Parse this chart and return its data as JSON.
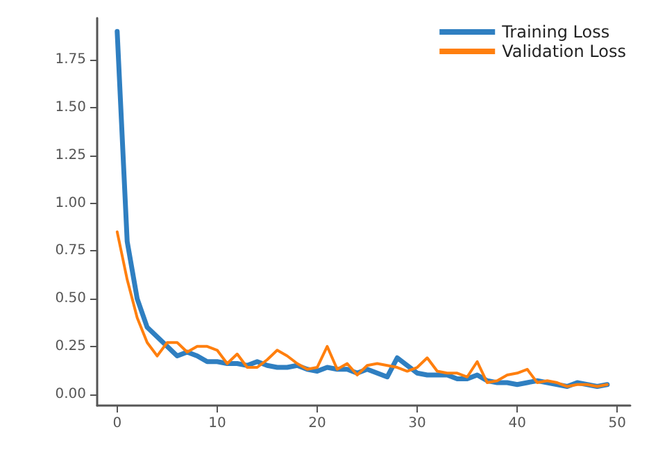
{
  "chart_data": {
    "type": "line",
    "x": [
      0,
      1,
      2,
      3,
      4,
      5,
      6,
      7,
      8,
      9,
      10,
      11,
      12,
      13,
      14,
      15,
      16,
      17,
      18,
      19,
      20,
      21,
      22,
      23,
      24,
      25,
      26,
      27,
      28,
      29,
      30,
      31,
      32,
      33,
      34,
      35,
      36,
      37,
      38,
      39,
      40,
      41,
      42,
      43,
      44,
      45,
      46,
      47,
      48,
      49
    ],
    "series": [
      {
        "name": "Training Loss",
        "color": "#2f7fc1",
        "values": [
          1.9,
          0.8,
          0.5,
          0.35,
          0.3,
          0.25,
          0.2,
          0.22,
          0.2,
          0.17,
          0.17,
          0.16,
          0.16,
          0.15,
          0.17,
          0.15,
          0.14,
          0.14,
          0.15,
          0.13,
          0.12,
          0.14,
          0.13,
          0.13,
          0.11,
          0.13,
          0.11,
          0.09,
          0.19,
          0.15,
          0.11,
          0.1,
          0.1,
          0.1,
          0.08,
          0.08,
          0.1,
          0.07,
          0.06,
          0.06,
          0.05,
          0.06,
          0.07,
          0.06,
          0.05,
          0.04,
          0.06,
          0.05,
          0.04,
          0.05
        ]
      },
      {
        "name": "Validation Loss",
        "color": "#ff7f0e",
        "values": [
          0.85,
          0.6,
          0.4,
          0.27,
          0.2,
          0.27,
          0.27,
          0.22,
          0.25,
          0.25,
          0.23,
          0.16,
          0.21,
          0.14,
          0.14,
          0.18,
          0.23,
          0.2,
          0.16,
          0.13,
          0.14,
          0.25,
          0.13,
          0.16,
          0.1,
          0.15,
          0.16,
          0.15,
          0.14,
          0.12,
          0.14,
          0.19,
          0.12,
          0.11,
          0.11,
          0.09,
          0.17,
          0.06,
          0.07,
          0.1,
          0.11,
          0.13,
          0.06,
          0.07,
          0.06,
          0.04,
          0.05,
          0.05,
          0.04,
          0.05
        ]
      }
    ],
    "xlim": [
      -2,
      51.3
    ],
    "xticks": [
      0,
      10,
      20,
      30,
      40,
      50
    ],
    "ylim": [
      -0.06,
      1.97
    ],
    "yticks": [
      {
        "value": 0,
        "label": "0.00"
      },
      {
        "value": 0.25,
        "label": "0.25"
      },
      {
        "value": 0.5,
        "label": "0.50"
      },
      {
        "value": 0.75,
        "label": "0.75"
      },
      {
        "value": 1,
        "label": "1.00"
      },
      {
        "value": 1.25,
        "label": "1.25"
      },
      {
        "value": 1.5,
        "label": "1.50"
      },
      {
        "value": 1.75,
        "label": "1.75"
      }
    ],
    "legend": "top right",
    "grid": false,
    "marker": "none",
    "line_style": "solid"
  }
}
